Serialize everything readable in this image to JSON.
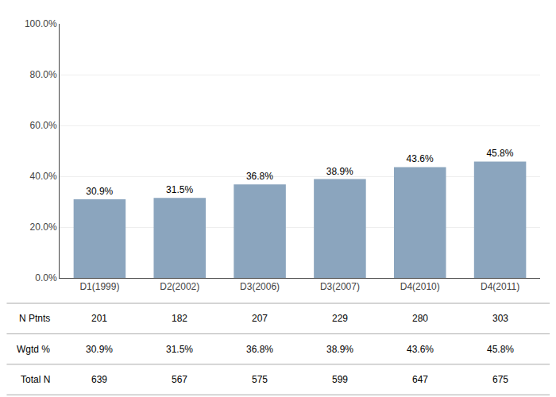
{
  "chart_data": {
    "type": "bar",
    "categories": [
      "D1(1999)",
      "D2(2002)",
      "D3(2006)",
      "D3(2007)",
      "D4(2010)",
      "D4(2011)"
    ],
    "values": [
      30.9,
      31.5,
      36.8,
      38.9,
      43.6,
      45.8
    ],
    "value_labels": [
      "30.9%",
      "31.5%",
      "36.8%",
      "38.9%",
      "43.6%",
      "45.8%"
    ],
    "data_labels": true,
    "color": "#8ba5be",
    "ylim": [
      0,
      100
    ],
    "yticks": [
      {
        "value": 0,
        "label": "0.0%"
      },
      {
        "value": 20,
        "label": "20.0%"
      },
      {
        "value": 40,
        "label": "40.0%"
      },
      {
        "value": 60,
        "label": "60.0%"
      },
      {
        "value": 80,
        "label": "80.0%"
      },
      {
        "value": 100,
        "label": "100.0%"
      }
    ],
    "grid": true,
    "table": [
      {
        "label": "N Ptnts",
        "values": [
          201,
          182,
          207,
          229,
          280,
          303
        ]
      },
      {
        "label": "Wgtd %",
        "values": [
          30.9,
          31.5,
          36.8,
          38.9,
          43.6,
          45.8
        ],
        "value_labels": [
          "30.9%",
          "31.5%",
          "36.8%",
          "38.9%",
          "43.6%",
          "45.8%"
        ]
      },
      {
        "label": "Total N",
        "values": [
          639,
          567,
          575,
          599,
          647,
          675
        ]
      }
    ]
  }
}
